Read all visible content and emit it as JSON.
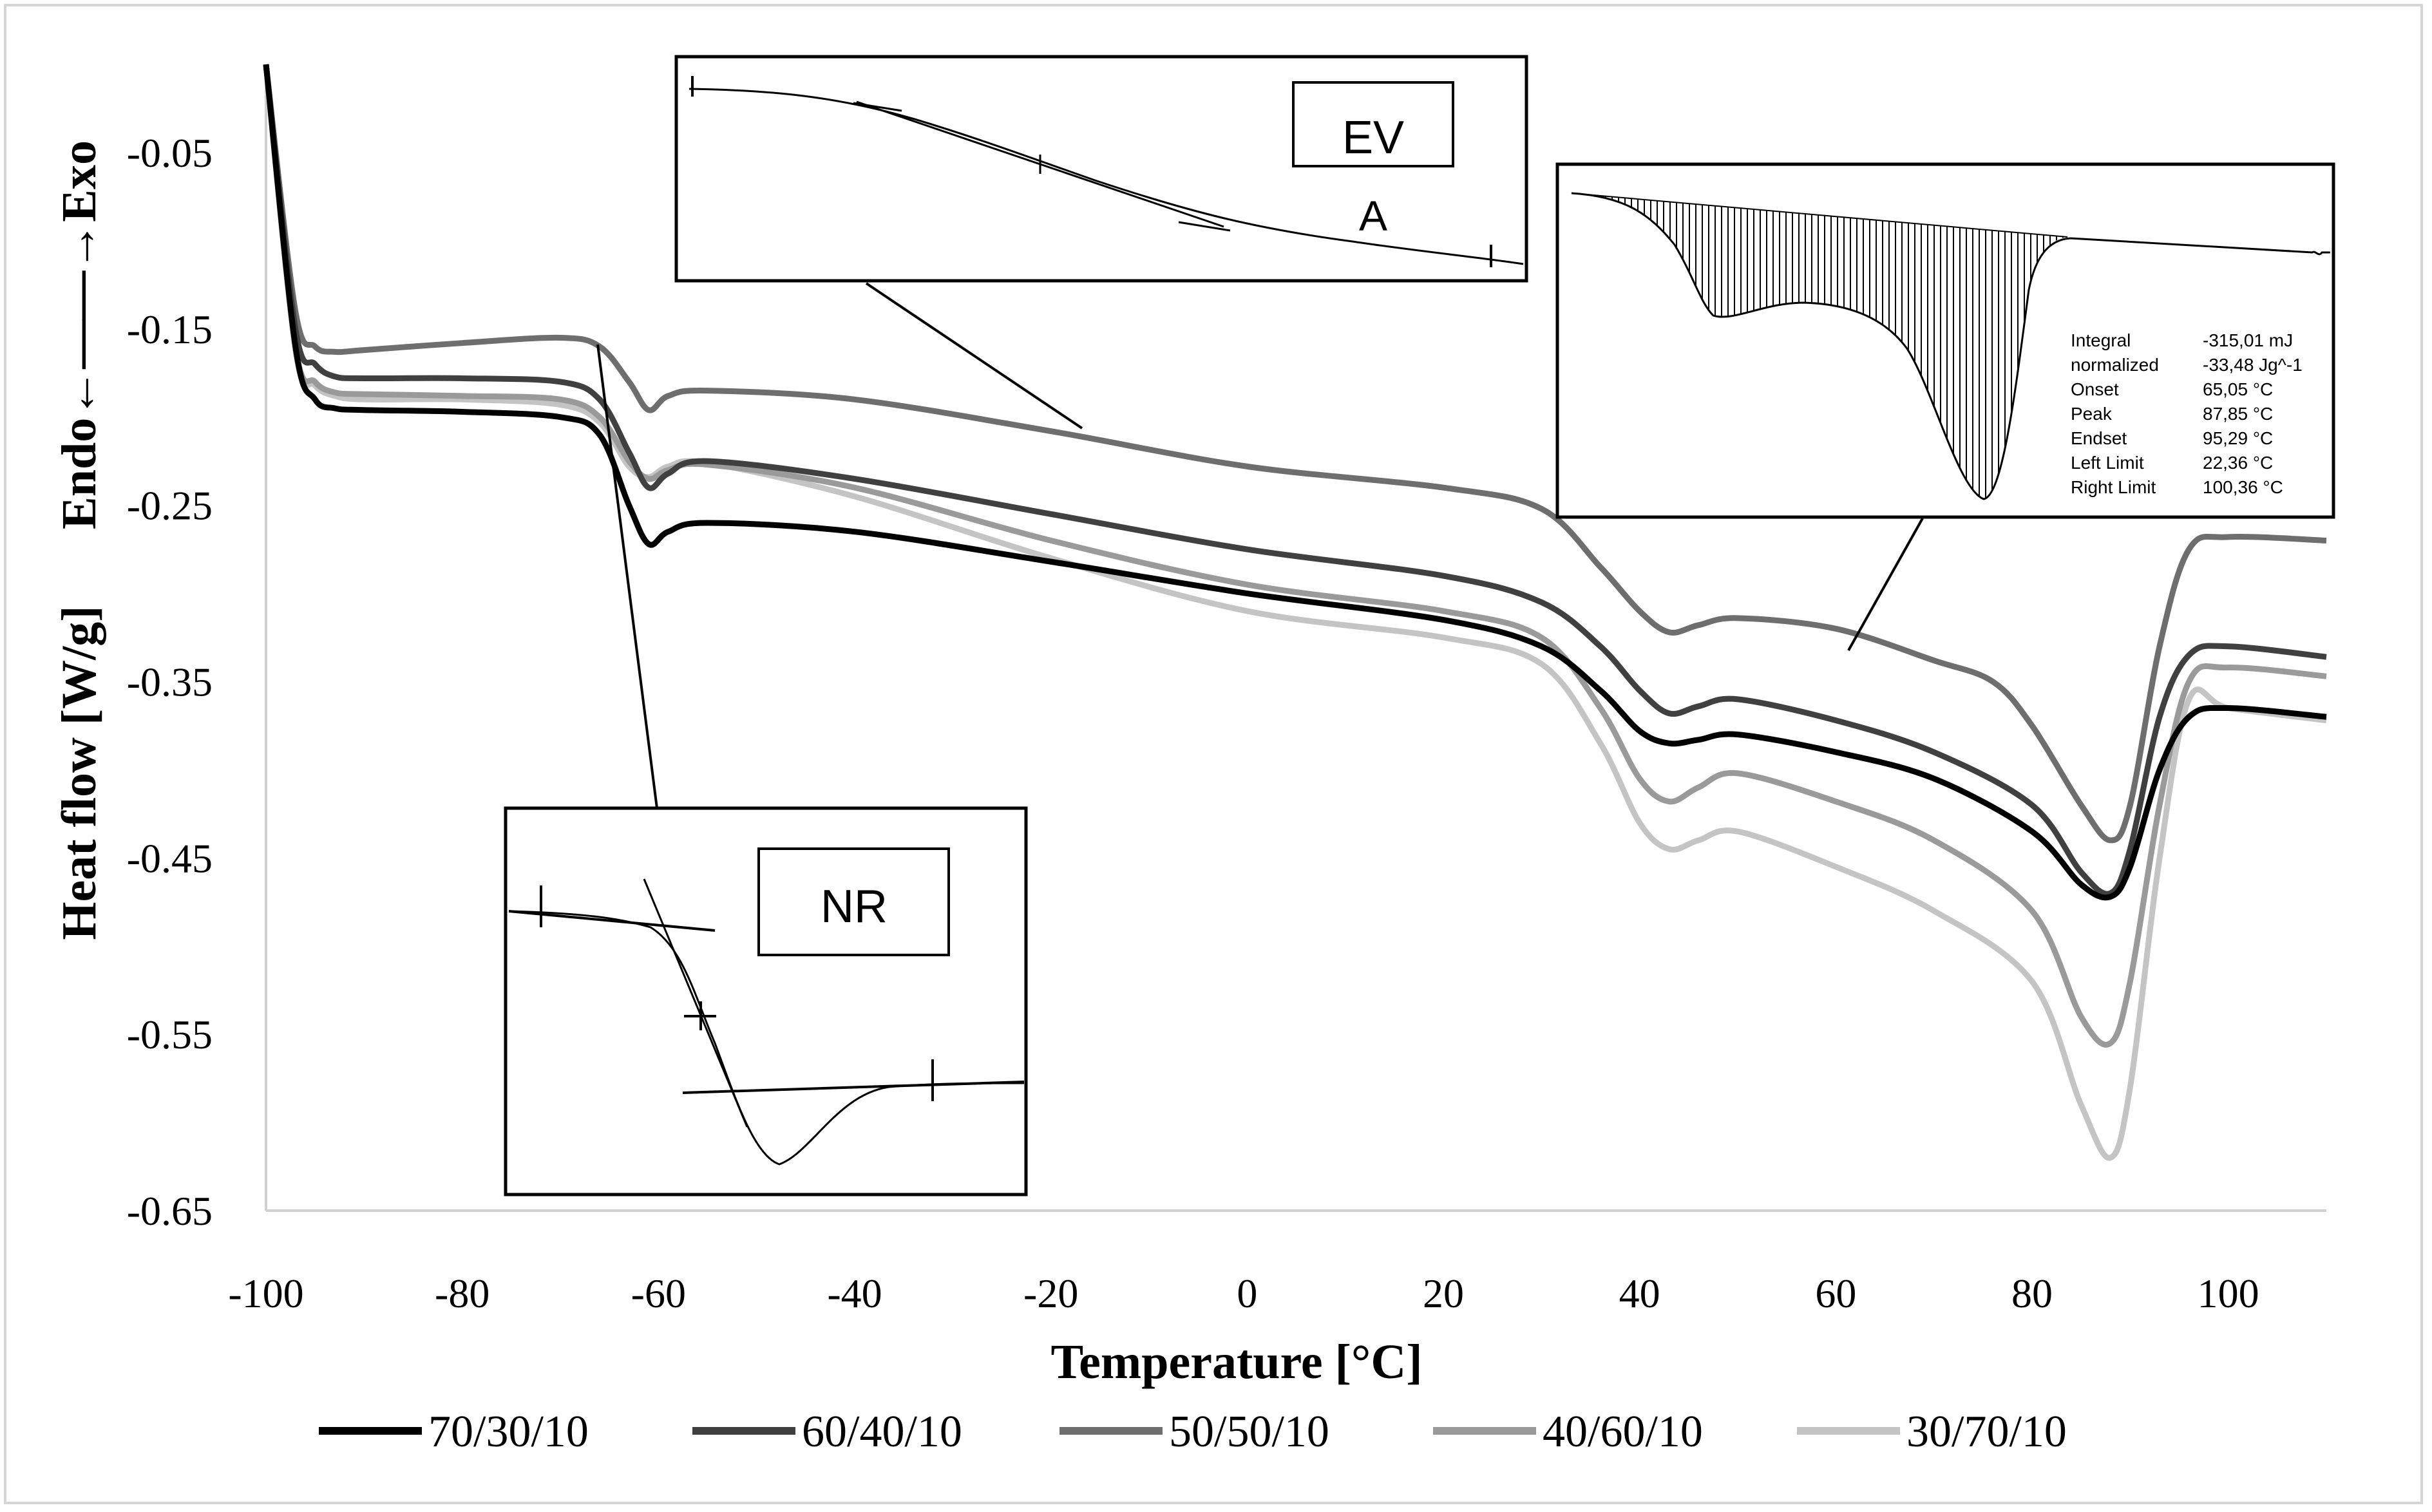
{
  "chart_data": {
    "type": "line",
    "title": "",
    "xlabel": "Temperature [°C]",
    "ylabel": "Heat flow [W/g]",
    "ylabel_secondary": "Endo←——→Exo",
    "xlim": [
      -100,
      110
    ],
    "ylim": [
      -0.65,
      0.0
    ],
    "xticks": [
      "-100",
      "-80",
      "-60",
      "-40",
      "-20",
      "0",
      "20",
      "40",
      "60",
      "80",
      "100"
    ],
    "xtick_values": [
      -100,
      -80,
      -60,
      -40,
      -20,
      0,
      20,
      40,
      60,
      80,
      100
    ],
    "yticks": [
      "-0.05",
      "-0.15",
      "-0.25",
      "-0.35",
      "-0.45",
      "-0.55",
      "-0.65"
    ],
    "ytick_values": [
      -0.05,
      -0.15,
      -0.25,
      -0.35,
      -0.45,
      -0.55,
      -0.65
    ],
    "grid": false,
    "legend_position": "bottom",
    "series": [
      {
        "name": "70/30/10",
        "color": "#000000",
        "x": [
          -100,
          -97,
          -95,
          -93,
          -90,
          -80,
          -70,
          -66,
          -63,
          -61,
          -59,
          -55,
          -40,
          -20,
          0,
          20,
          30,
          36,
          40,
          43,
          46,
          50,
          60,
          70,
          80,
          85,
          88,
          90,
          93,
          96,
          100,
          110
        ],
        "y": [
          0.0,
          -0.16,
          -0.19,
          -0.195,
          -0.196,
          -0.197,
          -0.2,
          -0.21,
          -0.25,
          -0.272,
          -0.265,
          -0.26,
          -0.265,
          -0.282,
          -0.3,
          -0.315,
          -0.33,
          -0.355,
          -0.378,
          -0.385,
          -0.383,
          -0.38,
          -0.39,
          -0.405,
          -0.435,
          -0.465,
          -0.472,
          -0.455,
          -0.4,
          -0.37,
          -0.365,
          -0.37
        ]
      },
      {
        "name": "60/40/10",
        "color": "#404040",
        "x": [
          -100,
          -97,
          -95,
          -93,
          -90,
          -80,
          -70,
          -66,
          -63,
          -61,
          -59,
          -55,
          -40,
          -20,
          0,
          20,
          30,
          36,
          40,
          43,
          46,
          50,
          60,
          70,
          80,
          85,
          88,
          90,
          93,
          96,
          100,
          110
        ],
        "y": [
          0.0,
          -0.15,
          -0.17,
          -0.177,
          -0.178,
          -0.178,
          -0.18,
          -0.19,
          -0.22,
          -0.24,
          -0.232,
          -0.225,
          -0.235,
          -0.255,
          -0.275,
          -0.29,
          -0.305,
          -0.33,
          -0.355,
          -0.368,
          -0.364,
          -0.36,
          -0.372,
          -0.39,
          -0.42,
          -0.458,
          -0.47,
          -0.445,
          -0.37,
          -0.335,
          -0.33,
          -0.336
        ]
      },
      {
        "name": "50/50/10",
        "color": "#6e6e6e",
        "x": [
          -100,
          -97,
          -95,
          -93,
          -90,
          -80,
          -70,
          -66,
          -63,
          -61,
          -59,
          -55,
          -40,
          -20,
          0,
          20,
          30,
          36,
          40,
          43,
          46,
          50,
          60,
          70,
          76,
          80,
          85,
          88,
          90,
          93,
          96,
          100,
          110
        ],
        "y": [
          0.0,
          -0.14,
          -0.16,
          -0.163,
          -0.162,
          -0.158,
          -0.155,
          -0.16,
          -0.18,
          -0.196,
          -0.188,
          -0.185,
          -0.19,
          -0.208,
          -0.228,
          -0.24,
          -0.252,
          -0.285,
          -0.31,
          -0.322,
          -0.318,
          -0.314,
          -0.32,
          -0.338,
          -0.35,
          -0.375,
          -0.42,
          -0.44,
          -0.42,
          -0.33,
          -0.275,
          -0.268,
          -0.27
        ]
      },
      {
        "name": "40/60/10",
        "color": "#9a9a9a",
        "x": [
          -100,
          -97,
          -95,
          -93,
          -90,
          -80,
          -70,
          -66,
          -63,
          -61,
          -59,
          -55,
          -40,
          -20,
          0,
          20,
          30,
          36,
          40,
          43,
          46,
          50,
          60,
          70,
          80,
          85,
          88,
          90,
          93,
          96,
          100,
          110
        ],
        "y": [
          0.0,
          -0.16,
          -0.18,
          -0.186,
          -0.187,
          -0.188,
          -0.19,
          -0.2,
          -0.225,
          -0.235,
          -0.23,
          -0.227,
          -0.24,
          -0.27,
          -0.295,
          -0.31,
          -0.325,
          -0.365,
          -0.405,
          -0.418,
          -0.41,
          -0.402,
          -0.418,
          -0.44,
          -0.48,
          -0.54,
          -0.555,
          -0.52,
          -0.42,
          -0.35,
          -0.342,
          -0.347
        ]
      },
      {
        "name": "30/70/10",
        "color": "#c4c4c4",
        "x": [
          -100,
          -97,
          -95,
          -93,
          -90,
          -80,
          -70,
          -66,
          -63,
          -61,
          -59,
          -55,
          -40,
          -20,
          0,
          20,
          30,
          36,
          40,
          43,
          46,
          50,
          60,
          70,
          80,
          85,
          88,
          90,
          93,
          96,
          100,
          110
        ],
        "y": [
          0.0,
          -0.162,
          -0.182,
          -0.188,
          -0.19,
          -0.19,
          -0.193,
          -0.203,
          -0.228,
          -0.234,
          -0.228,
          -0.226,
          -0.245,
          -0.28,
          -0.31,
          -0.325,
          -0.34,
          -0.385,
          -0.43,
          -0.445,
          -0.44,
          -0.435,
          -0.455,
          -0.48,
          -0.52,
          -0.59,
          -0.62,
          -0.58,
          -0.45,
          -0.36,
          -0.365,
          -0.372
        ]
      }
    ]
  },
  "insets": {
    "ev": {
      "label_line1": "EV",
      "label_line2": "A"
    },
    "nr": {
      "label": "NR"
    },
    "integral": {
      "rows": [
        {
          "label": "Integral",
          "value": "-315,01 mJ"
        },
        {
          "label": "  normalized",
          "value": "-33,48 Jg^-1"
        },
        {
          "label": "Onset",
          "value": "65,05 °C"
        },
        {
          "label": "Peak",
          "value": "87,85 °C"
        },
        {
          "label": "Endset",
          "value": "95,29 °C"
        },
        {
          "label": "Left Limit",
          "value": "22,36 °C"
        },
        {
          "label": "Right Limit",
          "value": "100,36 °C"
        }
      ]
    }
  }
}
